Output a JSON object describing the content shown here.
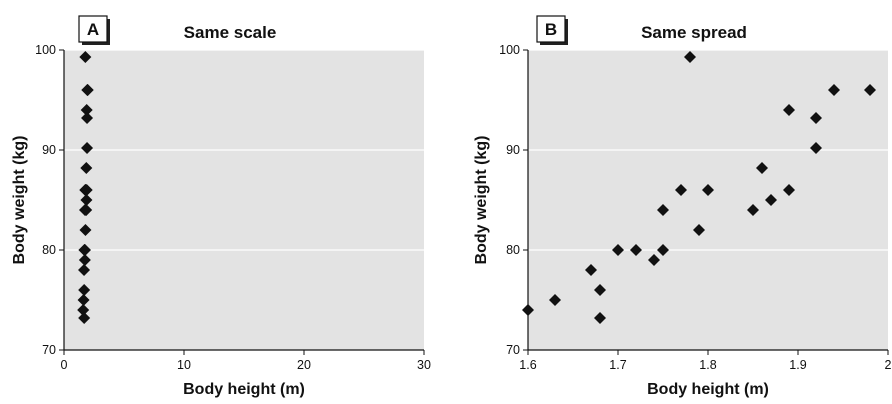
{
  "chart_data": [
    {
      "type": "scatter",
      "panel_label": "A",
      "title": "Same scale",
      "xlabel": "Body height (m)",
      "ylabel": "Body weight (kg)",
      "xlim": [
        0,
        30
      ],
      "ylim": [
        70,
        100
      ],
      "xticks": [
        0,
        10,
        20,
        30
      ],
      "yticks": [
        70,
        80,
        90,
        100
      ],
      "grid": "horizontal",
      "background": "#e3e3e3",
      "marker": "diamond",
      "marker_color": "#111111",
      "points": [
        {
          "x": 1.6,
          "y": 74
        },
        {
          "x": 1.63,
          "y": 75
        },
        {
          "x": 1.67,
          "y": 78
        },
        {
          "x": 1.68,
          "y": 76
        },
        {
          "x": 1.68,
          "y": 73.2
        },
        {
          "x": 1.7,
          "y": 80
        },
        {
          "x": 1.72,
          "y": 80
        },
        {
          "x": 1.74,
          "y": 79
        },
        {
          "x": 1.75,
          "y": 80
        },
        {
          "x": 1.75,
          "y": 84
        },
        {
          "x": 1.77,
          "y": 86
        },
        {
          "x": 1.78,
          "y": 99.3
        },
        {
          "x": 1.79,
          "y": 82
        },
        {
          "x": 1.8,
          "y": 86
        },
        {
          "x": 1.85,
          "y": 84
        },
        {
          "x": 1.86,
          "y": 88.2
        },
        {
          "x": 1.87,
          "y": 85
        },
        {
          "x": 1.89,
          "y": 94
        },
        {
          "x": 1.89,
          "y": 86
        },
        {
          "x": 1.92,
          "y": 93.2
        },
        {
          "x": 1.92,
          "y": 90.2
        },
        {
          "x": 1.94,
          "y": 96
        },
        {
          "x": 1.98,
          "y": 96
        }
      ]
    },
    {
      "type": "scatter",
      "panel_label": "B",
      "title": "Same spread",
      "xlabel": "Body height (m)",
      "ylabel": "Body weight (kg)",
      "xlim": [
        1.6,
        2.0
      ],
      "ylim": [
        70,
        100
      ],
      "xticks": [
        1.6,
        1.7,
        1.8,
        1.9,
        2
      ],
      "xtick_labels": [
        "1.6",
        "1.7",
        "1.8",
        "1.9",
        "2"
      ],
      "yticks": [
        70,
        80,
        90,
        100
      ],
      "grid": "horizontal",
      "background": "#e3e3e3",
      "marker": "diamond",
      "marker_color": "#111111",
      "points": [
        {
          "x": 1.6,
          "y": 74
        },
        {
          "x": 1.63,
          "y": 75
        },
        {
          "x": 1.67,
          "y": 78
        },
        {
          "x": 1.68,
          "y": 76
        },
        {
          "x": 1.68,
          "y": 73.2
        },
        {
          "x": 1.7,
          "y": 80
        },
        {
          "x": 1.72,
          "y": 80
        },
        {
          "x": 1.74,
          "y": 79
        },
        {
          "x": 1.75,
          "y": 80
        },
        {
          "x": 1.75,
          "y": 84
        },
        {
          "x": 1.77,
          "y": 86
        },
        {
          "x": 1.78,
          "y": 99.3
        },
        {
          "x": 1.79,
          "y": 82
        },
        {
          "x": 1.8,
          "y": 86
        },
        {
          "x": 1.85,
          "y": 84
        },
        {
          "x": 1.86,
          "y": 88.2
        },
        {
          "x": 1.87,
          "y": 85
        },
        {
          "x": 1.89,
          "y": 94
        },
        {
          "x": 1.89,
          "y": 86
        },
        {
          "x": 1.92,
          "y": 93.2
        },
        {
          "x": 1.92,
          "y": 90.2
        },
        {
          "x": 1.94,
          "y": 96
        },
        {
          "x": 1.98,
          "y": 96
        }
      ]
    }
  ]
}
